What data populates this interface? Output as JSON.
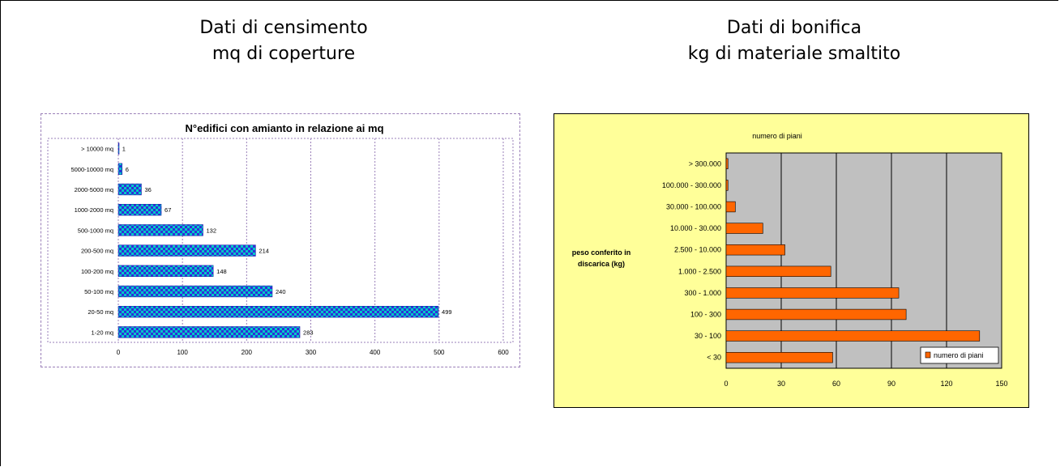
{
  "headings": {
    "left": {
      "line1": "Dati di censimento",
      "line2": "mq di coperture"
    },
    "right": {
      "line1": "Dati di bonifica",
      "line2": "kg di materiale smaltito"
    }
  },
  "chart_data": [
    {
      "type": "bar",
      "orientation": "horizontal",
      "title": "N°edifici con amianto in relazione ai mq",
      "categories": [
        "1-20 mq",
        "20-50 mq",
        "50-100 mq",
        "100-200 mq",
        "200-500 mq",
        "500-1000 mq",
        "1000-2000 mq",
        "2000-5000 mq",
        "5000-10000 mq",
        "> 10000 mq"
      ],
      "values": [
        283,
        499,
        240,
        148,
        214,
        132,
        67,
        36,
        6,
        1
      ],
      "xlim": [
        0,
        600
      ],
      "xticks": [
        0,
        100,
        200,
        300,
        400,
        500,
        600
      ],
      "grid": true,
      "legend": "none",
      "colors": {
        "bar_fill": "#2f2fd8",
        "bar_pattern": "#00c8c8",
        "grid": "#9a7fb8"
      }
    },
    {
      "type": "bar",
      "orientation": "horizontal",
      "title": "numero di piani",
      "ylabel": "peso conferito in discarica (kg)",
      "categories": [
        "< 30",
        "30 - 100",
        "100 - 300",
        "300 - 1.000",
        "1.000 - 2.500",
        "2.500 - 10.000",
        "10.000 - 30.000",
        "30.000 - 100.000",
        "100.000 - 300.000",
        "> 300.000"
      ],
      "series": [
        {
          "name": "numero di piani",
          "values": [
            58,
            138,
            98,
            94,
            57,
            32,
            20,
            5,
            1,
            1
          ]
        }
      ],
      "xlim": [
        0,
        150
      ],
      "xticks": [
        0,
        30,
        60,
        90,
        120,
        150
      ],
      "grid": true,
      "legend": "bottom-right",
      "colors": {
        "background": "#ffff99",
        "plot": "#c0c0c0",
        "bar": "#ff6600"
      }
    }
  ]
}
